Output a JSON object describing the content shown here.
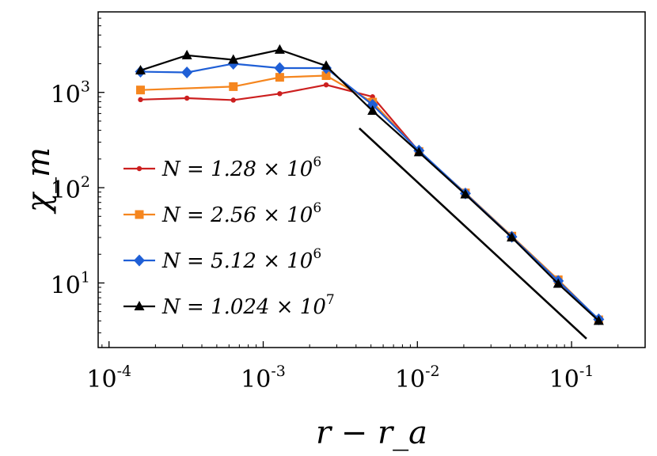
{
  "chart_data": {
    "type": "line",
    "xlabel": "r − r_a",
    "ylabel": "χ_m",
    "xscale": "log",
    "yscale": "log",
    "xlim": [
      8.5e-05,
      0.3
    ],
    "ylim": [
      2.1,
      7000
    ],
    "grid": false,
    "legend_position": "center-left",
    "x_ticks": [
      {
        "value": 0.0001,
        "base": "10",
        "exp": "-4"
      },
      {
        "value": 0.001,
        "base": "10",
        "exp": "-3"
      },
      {
        "value": 0.01,
        "base": "10",
        "exp": "-2"
      },
      {
        "value": 0.1,
        "base": "10",
        "exp": "-1"
      }
    ],
    "y_ticks": [
      {
        "value": 10,
        "base": "10",
        "exp": "1"
      },
      {
        "value": 100,
        "base": "10",
        "exp": "2"
      },
      {
        "value": 1000,
        "base": "10",
        "exp": "3"
      }
    ],
    "series": [
      {
        "name": "N = 1.28 × 10^6",
        "label_main": "N = 1.28 × 10",
        "label_exp": "6",
        "color": "#cc1f1f",
        "marker": "dot",
        "x": [
          0.00016,
          0.00032,
          0.00064,
          0.00128,
          0.00256,
          0.00512,
          0.01024,
          0.02048,
          0.04096,
          0.08192,
          0.15
        ],
        "y": [
          840,
          870,
          830,
          970,
          1200,
          900,
          240,
          87,
          30.5,
          10.5,
          4.1
        ]
      },
      {
        "name": "N = 2.56 × 10^6",
        "label_main": "N = 2.56 × 10",
        "label_exp": "6",
        "color": "#f5861f",
        "marker": "square",
        "x": [
          0.00016,
          0.00064,
          0.00128,
          0.00256,
          0.00512,
          0.01024,
          0.02048,
          0.04096,
          0.08192,
          0.15
        ],
        "y": [
          1060,
          1150,
          1440,
          1500,
          790,
          240,
          88,
          31,
          10.8,
          4.1
        ]
      },
      {
        "name": "N = 5.12 × 10^6",
        "label_main": "N = 5.12 × 10",
        "label_exp": "6",
        "color": "#1f5fd6",
        "marker": "diamond",
        "x": [
          0.00016,
          0.00032,
          0.00064,
          0.00128,
          0.00256,
          0.00512,
          0.01024,
          0.02048,
          0.04096,
          0.08192,
          0.15
        ],
        "y": [
          1650,
          1620,
          2000,
          1800,
          1800,
          740,
          245,
          87,
          30.5,
          10.5,
          4.15
        ]
      },
      {
        "name": "N = 1.024 × 10^7",
        "label_main": "N = 1.024 × 10",
        "label_exp": "7",
        "color": "#000000",
        "marker": "triangle",
        "x": [
          0.00016,
          0.00032,
          0.00064,
          0.00128,
          0.00256,
          0.00512,
          0.01024,
          0.02048,
          0.04096,
          0.08192,
          0.15
        ],
        "y": [
          1700,
          2450,
          2200,
          2800,
          1900,
          640,
          235,
          85,
          30,
          9.8,
          4.0
        ]
      }
    ],
    "reference_line": {
      "color": "#000000",
      "x": [
        0.0042,
        0.125
      ],
      "y": [
        420,
        2.6
      ]
    }
  }
}
